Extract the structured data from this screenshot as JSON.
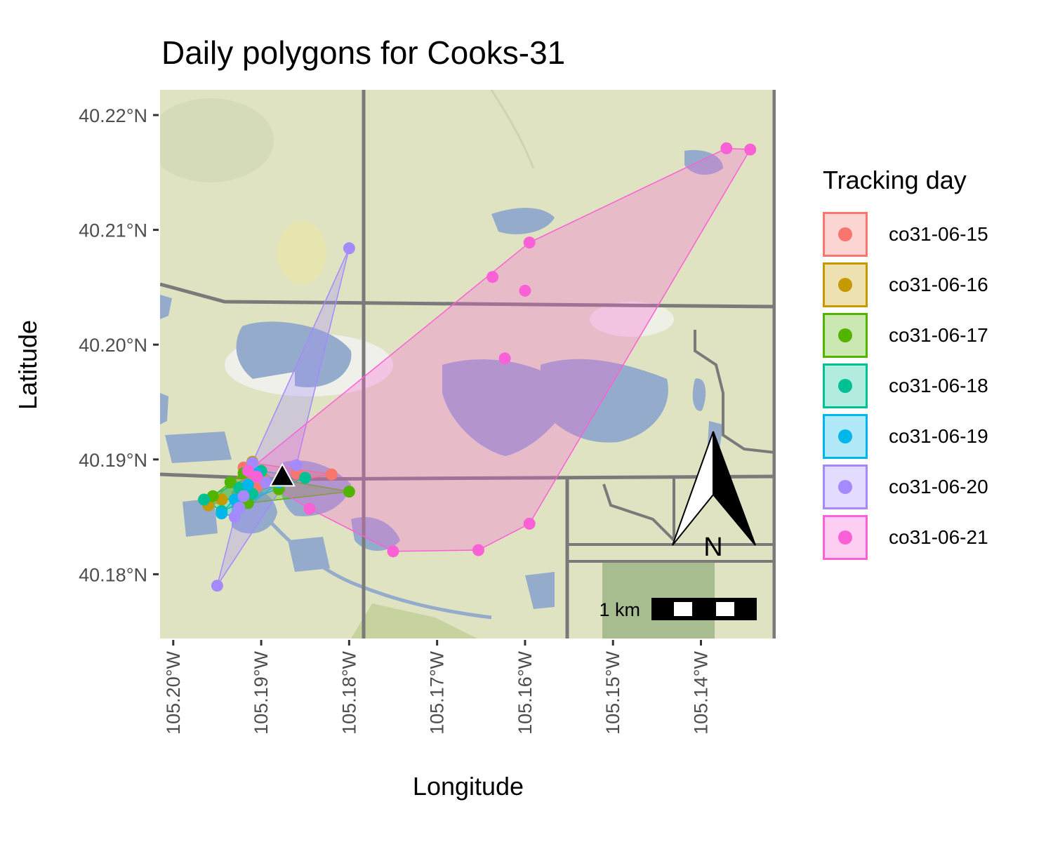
{
  "title": "Daily polygons for Cooks-31",
  "xlabel": "Longitude",
  "ylabel": "Latitude",
  "legend_title": "Tracking day",
  "scalebar_label": "1 km",
  "north_label": "N",
  "colors": {
    "water": "#94abcc",
    "land": "#dfe3c1",
    "road": "#7a7a7a",
    "park": "#a8bd8f",
    "marker": "#000000"
  },
  "chart_data": {
    "type": "scatter",
    "xlim": [
      -105.2015,
      -105.1315
    ],
    "ylim": [
      40.1744,
      40.2222
    ],
    "x_ticks": [
      {
        "value": -105.2,
        "label": "105.20°W"
      },
      {
        "value": -105.19,
        "label": "105.19°W"
      },
      {
        "value": -105.18,
        "label": "105.18°W"
      },
      {
        "value": -105.17,
        "label": "105.17°W"
      },
      {
        "value": -105.16,
        "label": "105.16°W"
      },
      {
        "value": -105.15,
        "label": "105.15°W"
      },
      {
        "value": -105.14,
        "label": "105.14°W"
      }
    ],
    "y_ticks": [
      {
        "value": 40.18,
        "label": "40.18°N"
      },
      {
        "value": 40.19,
        "label": "40.19°N"
      },
      {
        "value": 40.2,
        "label": "40.20°N"
      },
      {
        "value": 40.21,
        "label": "40.21°N"
      },
      {
        "value": 40.22,
        "label": "40.22°N"
      }
    ],
    "marker": {
      "x": -105.1876,
      "y": 40.1885,
      "shape": "triangle"
    },
    "series": [
      {
        "name": "co31-06-15",
        "color": "#f8766d",
        "points": [
          [
            -105.192,
            40.1893
          ],
          [
            -105.191,
            40.1897
          ],
          [
            -105.186,
            40.1888
          ],
          [
            -105.182,
            40.1887
          ],
          [
            -105.1915,
            40.188
          ],
          [
            -105.1905,
            40.1876
          ]
        ]
      },
      {
        "name": "co31-06-16",
        "color": "#c49a00",
        "points": [
          [
            -105.196,
            40.186
          ],
          [
            -105.1945,
            40.1865
          ],
          [
            -105.191,
            40.1898
          ],
          [
            -105.19,
            40.1885
          ],
          [
            -105.188,
            40.1878
          ]
        ]
      },
      {
        "name": "co31-06-17",
        "color": "#53b400",
        "points": [
          [
            -105.1955,
            40.1868
          ],
          [
            -105.1935,
            40.188
          ],
          [
            -105.1915,
            40.1862
          ],
          [
            -105.188,
            40.1874
          ],
          [
            -105.18,
            40.1872
          ],
          [
            -105.192,
            40.1888
          ]
        ]
      },
      {
        "name": "co31-06-18",
        "color": "#00c094",
        "points": [
          [
            -105.1965,
            40.1865
          ],
          [
            -105.1945,
            40.1855
          ],
          [
            -105.1925,
            40.1875
          ],
          [
            -105.19,
            40.189
          ],
          [
            -105.185,
            40.1884
          ],
          [
            -105.191,
            40.187
          ]
        ]
      },
      {
        "name": "co31-06-19",
        "color": "#00b6eb",
        "points": [
          [
            -105.1945,
            40.1853
          ],
          [
            -105.193,
            40.185
          ],
          [
            -105.193,
            40.1865
          ],
          [
            -105.1905,
            40.1888
          ],
          [
            -105.188,
            40.188
          ],
          [
            -105.1915,
            40.1878
          ]
        ]
      },
      {
        "name": "co31-06-20",
        "color": "#a58aff",
        "points": [
          [
            -105.195,
            40.179
          ],
          [
            -105.193,
            40.185
          ],
          [
            -105.192,
            40.1868
          ],
          [
            -105.191,
            40.1897
          ],
          [
            -105.186,
            40.1895
          ],
          [
            -105.18,
            40.2084
          ],
          [
            -105.1895,
            40.188
          ],
          [
            -105.1925,
            40.1858
          ]
        ]
      },
      {
        "name": "co31-06-21",
        "color": "#fb61d7",
        "points": [
          [
            -105.1915,
            40.189
          ],
          [
            -105.1905,
            40.1885
          ],
          [
            -105.1845,
            40.1857
          ],
          [
            -105.175,
            40.182
          ],
          [
            -105.1653,
            40.1821
          ],
          [
            -105.1595,
            40.1844
          ],
          [
            -105.1344,
            40.217
          ],
          [
            -105.1371,
            40.2171
          ],
          [
            -105.1595,
            40.2089
          ],
          [
            -105.1637,
            40.2059
          ],
          [
            -105.16,
            40.2047
          ],
          [
            -105.1623,
            40.1988
          ]
        ]
      }
    ]
  }
}
